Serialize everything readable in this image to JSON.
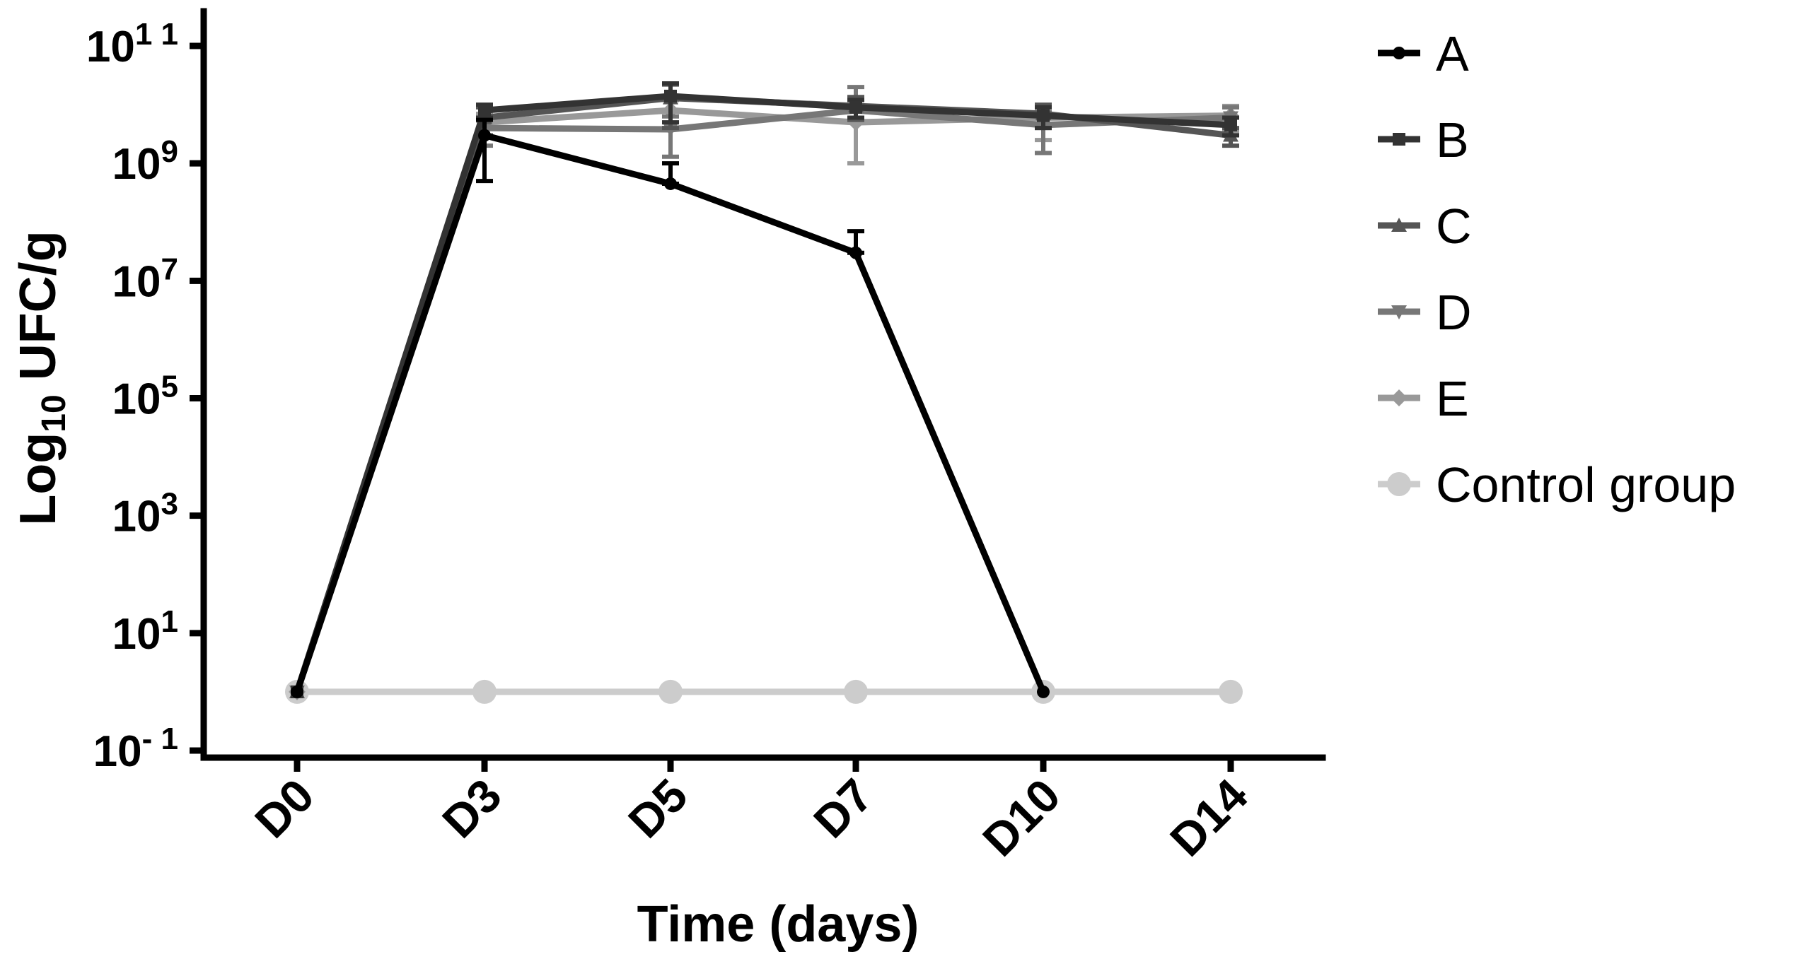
{
  "chart_data": {
    "type": "line",
    "ylabel_main": "Log",
    "ylabel_sub": "10",
    "ylabel_rest": " UFC/g",
    "xlabel": "Time (days)",
    "categories": [
      "D0",
      "D3",
      "D5",
      "D7",
      "D10",
      "D14"
    ],
    "y_scale": "log",
    "ylim": [
      0.1,
      100000000000
    ],
    "y_ticks": [
      {
        "base": "10",
        "exp": "1 1",
        "value": 100000000000
      },
      {
        "base": "10",
        "exp": "9",
        "value": 1000000000
      },
      {
        "base": "10",
        "exp": "7",
        "value": 10000000
      },
      {
        "base": "10",
        "exp": "5",
        "value": 100000
      },
      {
        "base": "10",
        "exp": "3",
        "value": 1000
      },
      {
        "base": "10",
        "exp": "1",
        "value": 10
      },
      {
        "base": "10",
        "exp": "- 1",
        "value": 0.1
      }
    ],
    "legend_position": "right",
    "series": [
      {
        "name": "A",
        "color": "#000000",
        "marker": "circle",
        "values": [
          1,
          3000000000,
          450000000,
          30000000,
          1,
          null
        ],
        "errors": [
          null,
          2500000000,
          550000000,
          40000000,
          null,
          null
        ]
      },
      {
        "name": "B",
        "color": "#333333",
        "marker": "square",
        "values": [
          1,
          8000000000,
          14000000000,
          9000000000,
          6500000000,
          4500000000
        ],
        "errors": [
          null,
          2000000000,
          9000000000,
          3000000000,
          2500000000,
          1500000000
        ]
      },
      {
        "name": "C",
        "color": "#555555",
        "marker": "triangle",
        "values": [
          1,
          6000000000,
          13000000000,
          9500000000,
          7000000000,
          3000000000
        ],
        "errors": [
          null,
          3000000000,
          9000000000,
          4000000000,
          3000000000,
          1000000000
        ]
      },
      {
        "name": "D",
        "color": "#777777",
        "marker": "triangle-down",
        "values": [
          1,
          4000000000,
          3800000000,
          8000000000,
          4500000000,
          6000000000
        ],
        "errors": [
          null,
          2000000000,
          2500000000,
          12000000000,
          3000000000,
          3000000000
        ]
      },
      {
        "name": "E",
        "color": "#999999",
        "marker": "diamond",
        "values": [
          1,
          5000000000,
          8000000000,
          5000000000,
          6000000000,
          6500000000
        ],
        "errors": [
          null,
          2000000000,
          4000000000,
          4000000000,
          3500000000,
          3000000000
        ]
      },
      {
        "name": "Control group",
        "color": "#cccccc",
        "marker": "big-circle",
        "values": [
          1,
          1,
          1,
          1,
          1,
          1
        ],
        "errors": [
          null,
          null,
          null,
          null,
          null,
          null
        ]
      }
    ]
  }
}
